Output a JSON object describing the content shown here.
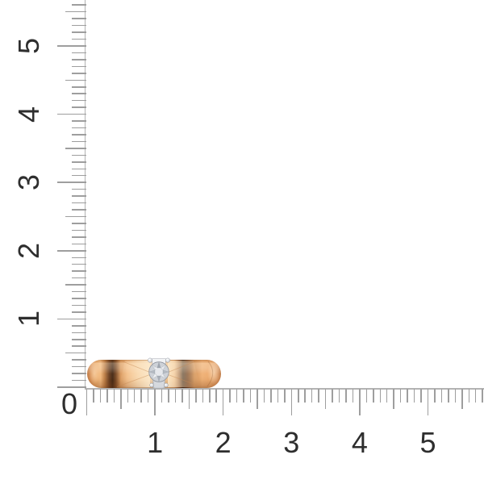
{
  "background": "#ffffff",
  "rulers": {
    "origin_label": "0",
    "vertical": {
      "labels": [
        "1",
        "2",
        "3",
        "4",
        "5"
      ],
      "tick_range": {
        "min": 0,
        "max": 5.6,
        "step": 0.1
      }
    },
    "horizontal": {
      "labels": [
        "1",
        "2",
        "3",
        "4",
        "5"
      ],
      "tick_range": {
        "min": 0,
        "max": 5.8,
        "step": 0.1
      }
    },
    "tick_color": "#9e9e9e",
    "line_color": "#b3b3b3",
    "label_color": "#2e2e2e"
  },
  "product": {
    "subject": "rose gold solitaire band ring with round diamond in four-prong white setting, side view resting on ruler origin",
    "colors": {
      "gold_base": "#f0b277",
      "gold_light": "#f9dcb6",
      "gold_dark": "#46291a",
      "diamond": "#ced2d8",
      "setting_metal": "#e9ebee"
    }
  }
}
